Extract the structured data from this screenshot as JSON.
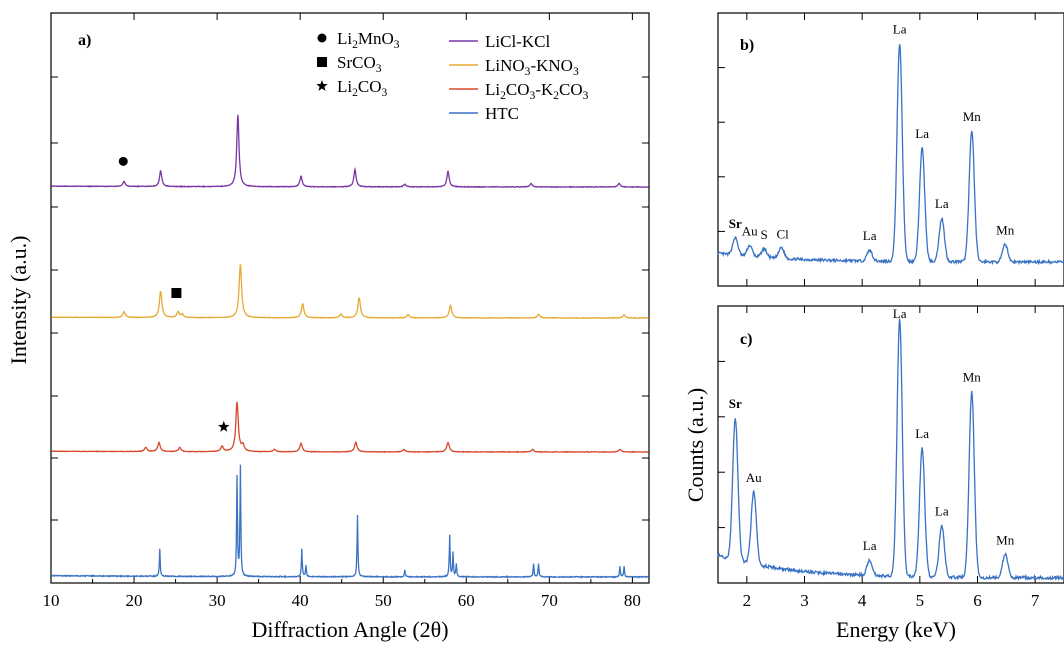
{
  "chart_data": [
    {
      "panel": "a)",
      "type": "line",
      "xlabel": "Diffraction Angle (2θ)",
      "ylabel": "Intensity (a.u.)",
      "xlim": [
        10,
        82
      ],
      "xticks": [
        10,
        20,
        30,
        40,
        50,
        60,
        70,
        80
      ],
      "stacked": true,
      "symbol_legend": [
        {
          "symbol": "circle",
          "label": "Li",
          "sub1": "2",
          "label2": "MnO",
          "sub2": "3"
        },
        {
          "symbol": "square",
          "label": "SrCO",
          "sub1": "3",
          "label2": "",
          "sub2": ""
        },
        {
          "symbol": "star",
          "label": "Li",
          "sub1": "2",
          "label2": "CO",
          "sub2": "3"
        }
      ],
      "series": [
        {
          "name": "LiCl-KCl",
          "legend_parts": [
            [
              "LiCl-KCl",
              ""
            ]
          ],
          "color": "#7b35a6",
          "peaks": [
            [
              18.8,
              0.07
            ],
            [
              23.2,
              0.22
            ],
            [
              32.5,
              1.0
            ],
            [
              40.1,
              0.15
            ],
            [
              46.6,
              0.24
            ],
            [
              52.6,
              0.04
            ],
            [
              57.8,
              0.22
            ],
            [
              67.8,
              0.05
            ],
            [
              78.4,
              0.05
            ]
          ],
          "markers": [
            {
              "symbol": "circle",
              "x": 18.7
            }
          ]
        },
        {
          "name": "LiNO3-KNO3",
          "legend_parts": [
            [
              "LiNO",
              "3"
            ],
            [
              "-KNO",
              "3"
            ]
          ],
          "color": "#e5aa33",
          "peaks": [
            [
              18.8,
              0.09
            ],
            [
              23.2,
              0.42
            ],
            [
              25.3,
              0.09
            ],
            [
              25.8,
              0.05
            ],
            [
              32.8,
              0.85
            ],
            [
              40.3,
              0.22
            ],
            [
              44.9,
              0.06
            ],
            [
              47.1,
              0.32
            ],
            [
              53.0,
              0.05
            ],
            [
              58.1,
              0.2
            ],
            [
              68.7,
              0.06
            ],
            [
              79.0,
              0.05
            ]
          ],
          "markers": [
            {
              "symbol": "square",
              "x": 25.1
            }
          ]
        },
        {
          "name": "Li2CO3-K2CO3",
          "legend_parts": [
            [
              "Li",
              "2"
            ],
            [
              "CO",
              "3"
            ],
            [
              "-K",
              "2"
            ],
            [
              "CO",
              "3"
            ]
          ],
          "color": "#d9482a",
          "peaks": [
            [
              21.4,
              0.07
            ],
            [
              23.0,
              0.15
            ],
            [
              25.5,
              0.07
            ],
            [
              30.6,
              0.09
            ],
            [
              32.4,
              0.82
            ],
            [
              33.1,
              0.1
            ],
            [
              36.9,
              0.04
            ],
            [
              40.1,
              0.14
            ],
            [
              46.7,
              0.16
            ],
            [
              52.5,
              0.04
            ],
            [
              57.8,
              0.16
            ],
            [
              68.0,
              0.04
            ],
            [
              78.5,
              0.04
            ]
          ],
          "markers": [
            {
              "symbol": "star",
              "x": 30.8
            }
          ]
        },
        {
          "name": "HTC",
          "legend_parts": [
            [
              "HTC",
              ""
            ]
          ],
          "color": "#3a72c4",
          "peaks": [
            [
              23.1,
              0.25
            ],
            [
              32.4,
              0.9
            ],
            [
              32.8,
              1.0
            ],
            [
              40.2,
              0.25
            ],
            [
              40.7,
              0.1
            ],
            [
              46.9,
              0.56
            ],
            [
              52.6,
              0.06
            ],
            [
              58.0,
              0.38
            ],
            [
              58.4,
              0.22
            ],
            [
              58.8,
              0.12
            ],
            [
              68.1,
              0.12
            ],
            [
              68.7,
              0.12
            ],
            [
              78.5,
              0.1
            ],
            [
              79.0,
              0.1
            ]
          ],
          "markers": []
        }
      ]
    },
    {
      "panel": "b)",
      "type": "line",
      "xlabel": "",
      "ylabel": "",
      "xlim": [
        1.5,
        7.5
      ],
      "color": "#3a72c4",
      "peaks": [
        [
          1.8,
          0.08
        ],
        [
          2.05,
          0.05
        ],
        [
          2.3,
          0.04
        ],
        [
          2.6,
          0.05
        ],
        [
          4.13,
          0.05
        ],
        [
          4.65,
          1.0
        ],
        [
          5.04,
          0.52
        ],
        [
          5.38,
          0.2
        ],
        [
          5.9,
          0.6
        ],
        [
          6.48,
          0.08
        ]
      ],
      "labels": [
        {
          "text": "Sr",
          "x": 1.8,
          "red": true
        },
        {
          "text": "Au",
          "x": 2.05,
          "red": false
        },
        {
          "text": "S",
          "x": 2.3,
          "red": false
        },
        {
          "text": "Cl",
          "x": 2.62,
          "red": false
        },
        {
          "text": "La",
          "x": 4.13,
          "red": false
        },
        {
          "text": "La",
          "x": 4.65,
          "red": false
        },
        {
          "text": "La",
          "x": 5.04,
          "red": false
        },
        {
          "text": "La",
          "x": 5.38,
          "red": false
        },
        {
          "text": "Mn",
          "x": 5.9,
          "red": false
        },
        {
          "text": "Mn",
          "x": 6.48,
          "red": false
        }
      ]
    },
    {
      "panel": "c)",
      "type": "line",
      "xlabel": "Energy (keV)",
      "ylabel": "Counts (a.u.)",
      "xlim": [
        1.5,
        7.5
      ],
      "xticks": [
        2,
        3,
        4,
        5,
        6,
        7
      ],
      "color": "#3a72c4",
      "peaks": [
        [
          1.8,
          0.55
        ],
        [
          2.12,
          0.28
        ],
        [
          4.13,
          0.06
        ],
        [
          4.65,
          1.0
        ],
        [
          5.04,
          0.5
        ],
        [
          5.38,
          0.2
        ],
        [
          5.9,
          0.72
        ],
        [
          6.48,
          0.09
        ]
      ],
      "labels": [
        {
          "text": "Sr",
          "x": 1.8,
          "red": true
        },
        {
          "text": "Au",
          "x": 2.12,
          "red": false
        },
        {
          "text": "La",
          "x": 4.13,
          "red": false
        },
        {
          "text": "La",
          "x": 4.65,
          "red": false
        },
        {
          "text": "La",
          "x": 5.04,
          "red": false
        },
        {
          "text": "La",
          "x": 5.38,
          "red": false
        },
        {
          "text": "Mn",
          "x": 5.9,
          "red": false
        },
        {
          "text": "Mn",
          "x": 6.48,
          "red": false
        }
      ]
    }
  ],
  "colors": {
    "axis": "#000000",
    "label_red": "#d9482a"
  }
}
